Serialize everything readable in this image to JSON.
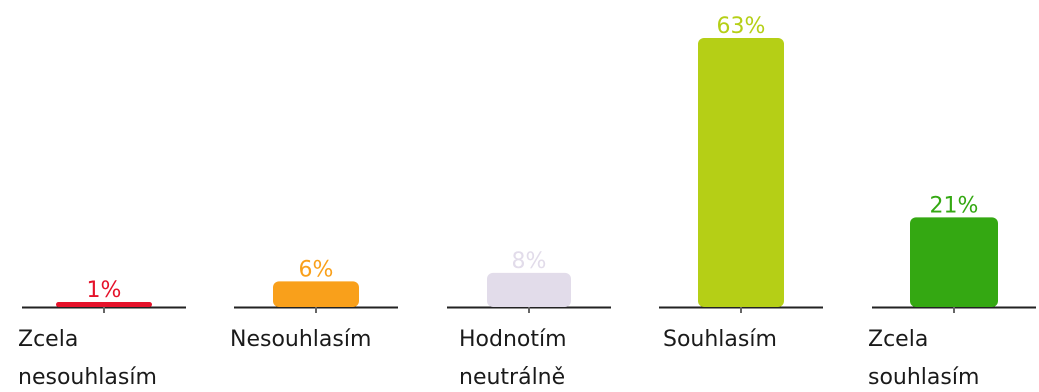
{
  "chart_data": {
    "type": "bar",
    "categories": [
      [
        "Zcela",
        "nesouhlasím"
      ],
      [
        "Nesouhlasím"
      ],
      [
        "Hodnotím",
        "neutrálně"
      ],
      [
        "Souhlasím"
      ],
      [
        "Zcela",
        "souhlasím"
      ]
    ],
    "values": [
      1,
      6,
      8,
      63,
      21
    ],
    "value_labels": [
      "1%",
      "6%",
      "8%",
      "63%",
      "21%"
    ],
    "colors": [
      "#e5122a",
      "#f9a01b",
      "#e2dcea",
      "#b5cf16",
      "#34a812"
    ],
    "value_label_colors": [
      "#e5122a",
      "#f9a01b",
      "#e2dcea",
      "#b5cf16",
      "#34a812"
    ],
    "unit": "%",
    "ylim": [
      0,
      63
    ],
    "grid": false,
    "legend": "none"
  }
}
